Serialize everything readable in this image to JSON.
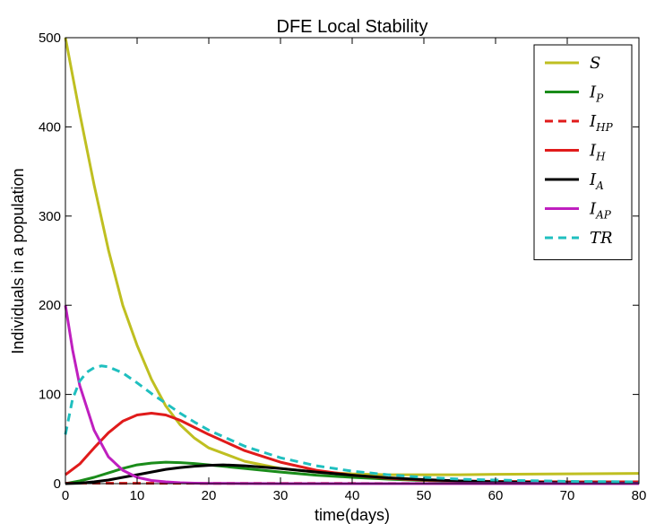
{
  "chart_data": {
    "type": "line",
    "title": "DFE Local Stability",
    "xlabel": "time(days)",
    "ylabel": "Individuals in a population",
    "xlim": [
      0,
      80
    ],
    "ylim": [
      0,
      500
    ],
    "xticks": [
      0,
      10,
      20,
      30,
      40,
      50,
      60,
      70,
      80
    ],
    "yticks": [
      0,
      100,
      200,
      300,
      400,
      500
    ],
    "grid": false,
    "legend": "top-right",
    "series": [
      {
        "name": "S",
        "name_sub": "",
        "color": "#bfbf21",
        "dash": "solid",
        "x": [
          0,
          2,
          4,
          6,
          8,
          10,
          12,
          14,
          16,
          18,
          20,
          25,
          30,
          35,
          40,
          45,
          50,
          55,
          60,
          70,
          80
        ],
        "y": [
          500,
          415,
          335,
          262,
          200,
          155,
          117,
          87,
          66,
          51,
          40,
          25,
          17,
          13,
          11,
          10,
          10,
          10,
          10.5,
          11,
          11.5
        ]
      },
      {
        "name": "I",
        "name_sub": "P",
        "color": "#1a8c1a",
        "dash": "solid",
        "x": [
          0,
          2,
          4,
          6,
          8,
          10,
          12,
          14,
          16,
          18,
          20,
          25,
          30,
          35,
          40,
          45,
          50,
          55,
          60,
          70,
          80
        ],
        "y": [
          0,
          3,
          7,
          12,
          17,
          21,
          23,
          24,
          23.5,
          22.5,
          21,
          17,
          13,
          9.5,
          7,
          5,
          3.5,
          2.5,
          1.8,
          1,
          0.5
        ]
      },
      {
        "name": "I",
        "name_sub": "HP",
        "color": "#e01b1b",
        "dash": "dashed",
        "x": [
          0,
          10,
          20,
          30,
          40,
          50,
          60,
          70,
          80
        ],
        "y": [
          0.5,
          0.4,
          0.3,
          0.2,
          0.2,
          0.1,
          0.1,
          0.1,
          0.1
        ]
      },
      {
        "name": "I",
        "name_sub": "H",
        "color": "#e01b1b",
        "dash": "solid",
        "x": [
          0,
          2,
          4,
          6,
          8,
          10,
          12,
          14,
          16,
          18,
          20,
          25,
          30,
          35,
          40,
          45,
          50,
          55,
          60,
          70,
          80
        ],
        "y": [
          10,
          22,
          40,
          57,
          70,
          77,
          79,
          77,
          71,
          63,
          55,
          37,
          24,
          15,
          9.5,
          6,
          4,
          3,
          2.5,
          2,
          2
        ]
      },
      {
        "name": "I",
        "name_sub": "A",
        "color": "#000000",
        "dash": "solid",
        "x": [
          0,
          2,
          4,
          6,
          8,
          10,
          12,
          14,
          16,
          18,
          20,
          22,
          25,
          30,
          35,
          40,
          45,
          50,
          55,
          60,
          70,
          80
        ],
        "y": [
          0,
          0.5,
          2,
          4,
          7,
          10,
          13,
          16,
          18,
          19.5,
          20.5,
          21,
          20,
          17,
          13,
          9.5,
          6.5,
          4.5,
          3,
          2,
          1,
          0.5
        ]
      },
      {
        "name": "I",
        "name_sub": "AP",
        "color": "#bf1fbf",
        "dash": "solid",
        "x": [
          0,
          1,
          2,
          4,
          6,
          8,
          10,
          12,
          14,
          16,
          18,
          20,
          25,
          30,
          40,
          50,
          60,
          70,
          80
        ],
        "y": [
          200,
          150,
          110,
          60,
          30,
          15,
          7,
          3.5,
          2,
          1,
          0.5,
          0.3,
          0.1,
          0,
          0,
          0,
          0,
          0,
          0
        ]
      },
      {
        "name": "TR",
        "name_sub": "",
        "color": "#1fbfbf",
        "dash": "dashed",
        "x": [
          0,
          1,
          2,
          3,
          4,
          5,
          6,
          8,
          10,
          12,
          14,
          16,
          18,
          20,
          25,
          30,
          35,
          40,
          45,
          50,
          55,
          60,
          70,
          80
        ],
        "y": [
          55,
          95,
          115,
          125,
          130,
          132,
          131,
          124,
          113,
          101,
          90,
          79,
          69,
          60,
          42,
          29,
          20,
          14,
          10,
          7,
          5,
          4,
          2.5,
          2
        ]
      }
    ]
  }
}
